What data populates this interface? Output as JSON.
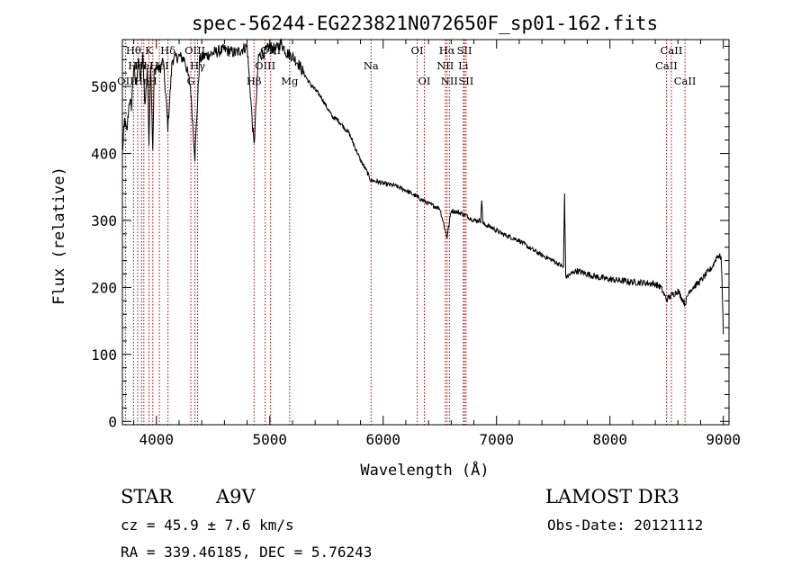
{
  "chart_data": {
    "type": "line",
    "title": "spec-56244-EG223821N072650F_sp01-162.fits",
    "xlabel": "Wavelength (Å)",
    "ylabel": "Flux (relative)",
    "xlim": [
      3700,
      9050
    ],
    "ylim": [
      -5,
      570
    ],
    "xticks": [
      4000,
      5000,
      6000,
      7000,
      8000,
      9000
    ],
    "yticks": [
      0,
      100,
      200,
      300,
      400,
      500
    ],
    "spectrum_anchors": [
      [
        3700,
        400
      ],
      [
        3720,
        450
      ],
      [
        3740,
        430
      ],
      [
        3760,
        480
      ],
      [
        3780,
        470
      ],
      [
        3800,
        530
      ],
      [
        3820,
        500
      ],
      [
        3840,
        540
      ],
      [
        3860,
        510
      ],
      [
        3880,
        545
      ],
      [
        3900,
        470
      ],
      [
        3920,
        530
      ],
      [
        3934,
        420
      ],
      [
        3950,
        540
      ],
      [
        3968,
        400
      ],
      [
        3980,
        520
      ],
      [
        4000,
        530
      ],
      [
        4030,
        525
      ],
      [
        4060,
        540
      ],
      [
        4101,
        440
      ],
      [
        4140,
        540
      ],
      [
        4200,
        545
      ],
      [
        4250,
        540
      ],
      [
        4300,
        500
      ],
      [
        4340,
        395
      ],
      [
        4380,
        540
      ],
      [
        4420,
        545
      ],
      [
        4500,
        550
      ],
      [
        4600,
        555
      ],
      [
        4700,
        550
      ],
      [
        4800,
        560
      ],
      [
        4861,
        410
      ],
      [
        4900,
        545
      ],
      [
        4950,
        550
      ],
      [
        5000,
        560
      ],
      [
        5050,
        555
      ],
      [
        5100,
        565
      ],
      [
        5150,
        550
      ],
      [
        5200,
        545
      ],
      [
        5250,
        535
      ],
      [
        5300,
        520
      ],
      [
        5350,
        505
      ],
      [
        5400,
        495
      ],
      [
        5450,
        485
      ],
      [
        5500,
        470
      ],
      [
        5550,
        455
      ],
      [
        5600,
        450
      ],
      [
        5650,
        440
      ],
      [
        5700,
        430
      ],
      [
        5750,
        410
      ],
      [
        5800,
        390
      ],
      [
        5850,
        375
      ],
      [
        5890,
        360
      ],
      [
        5950,
        358
      ],
      [
        6000,
        355
      ],
      [
        6100,
        352
      ],
      [
        6200,
        345
      ],
      [
        6300,
        335
      ],
      [
        6400,
        325
      ],
      [
        6500,
        318
      ],
      [
        6563,
        275
      ],
      [
        6600,
        315
      ],
      [
        6700,
        310
      ],
      [
        6800,
        300
      ],
      [
        6860,
        300
      ],
      [
        6870,
        330
      ],
      [
        6880,
        295
      ],
      [
        6950,
        290
      ],
      [
        7050,
        280
      ],
      [
        7200,
        270
      ],
      [
        7300,
        258
      ],
      [
        7400,
        248
      ],
      [
        7500,
        240
      ],
      [
        7590,
        230
      ],
      [
        7600,
        340
      ],
      [
        7610,
        215
      ],
      [
        7700,
        225
      ],
      [
        7800,
        220
      ],
      [
        7900,
        215
      ],
      [
        8000,
        212
      ],
      [
        8100,
        210
      ],
      [
        8200,
        208
      ],
      [
        8300,
        207
      ],
      [
        8400,
        205
      ],
      [
        8450,
        200
      ],
      [
        8498,
        182
      ],
      [
        8542,
        188
      ],
      [
        8600,
        195
      ],
      [
        8662,
        175
      ],
      [
        8700,
        195
      ],
      [
        8800,
        210
      ],
      [
        8900,
        230
      ],
      [
        8950,
        248
      ],
      [
        8980,
        245
      ],
      [
        8990,
        200
      ],
      [
        9000,
        130
      ]
    ],
    "spectral_lines": [
      {
        "wavelength": 3727,
        "label": "OII",
        "row": 3
      },
      {
        "wavelength": 3798,
        "label": "Hθ",
        "row": 1
      },
      {
        "wavelength": 3835,
        "label": "HeI",
        "row": 2
      },
      {
        "wavelength": 3869,
        "label": "Hη",
        "row": 3
      },
      {
        "wavelength": 3889,
        "label": "HeI",
        "row": 2
      },
      {
        "wavelength": 3934,
        "label": "K",
        "row": 1
      },
      {
        "wavelength": 3968,
        "label": "H",
        "row": 3
      },
      {
        "wavelength": 4102,
        "label": "Hδ",
        "row": 1
      },
      {
        "wavelength": 4026,
        "label": "HeI",
        "row": 2
      },
      {
        "wavelength": 4304,
        "label": "G",
        "row": 3
      },
      {
        "wavelength": 4340,
        "label": "OIII",
        "row": 1
      },
      {
        "wavelength": 4363,
        "label": "Hγ",
        "row": 2
      },
      {
        "wavelength": 4861,
        "label": "Hβ",
        "row": 3
      },
      {
        "wavelength": 4959,
        "label": "OIII",
        "row": 2
      },
      {
        "wavelength": 5007,
        "label": "OIII",
        "row": 1
      },
      {
        "wavelength": 5175,
        "label": "Mg",
        "row": 3
      },
      {
        "wavelength": 5893,
        "label": "Na",
        "row": 2
      },
      {
        "wavelength": 6300,
        "label": "OI",
        "row": 1
      },
      {
        "wavelength": 6363,
        "label": "OI",
        "row": 3
      },
      {
        "wavelength": 6548,
        "label": "NII",
        "row": 2
      },
      {
        "wavelength": 6563,
        "label": "Hα",
        "row": 1
      },
      {
        "wavelength": 6584,
        "label": "NII",
        "row": 3
      },
      {
        "wavelength": 6707,
        "label": "Li",
        "row": 2
      },
      {
        "wavelength": 6717,
        "label": "SII",
        "row": 1
      },
      {
        "wavelength": 6731,
        "label": "SII",
        "row": 3
      },
      {
        "wavelength": 8498,
        "label": "CaII",
        "row": 2
      },
      {
        "wavelength": 8542,
        "label": "CaII",
        "row": 1
      },
      {
        "wavelength": 8662,
        "label": "CaII",
        "row": 3
      }
    ]
  },
  "info": {
    "object_type": "STAR",
    "subclass": "A9V",
    "survey": "LAMOST DR3",
    "cz": "cz = 45.9 ± 7.6 km/s",
    "obs_date": "Obs-Date: 20121112",
    "coords": "RA = 339.46185, DEC =   5.76243"
  }
}
